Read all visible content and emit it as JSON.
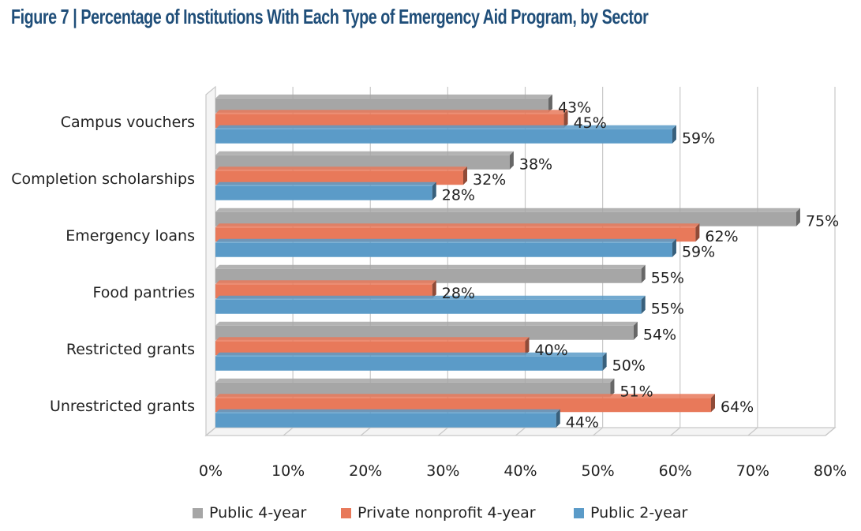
{
  "page": {
    "title": "Figure 7 | Percentage of Institutions With Each Type of Emergency Aid Program, by Sector"
  },
  "colors": {
    "title": "#1f4e79",
    "public4": "#a6a6a6",
    "private4": "#e8795a",
    "public2": "#5b9bc8",
    "grid": "#c8c8c8"
  },
  "chart_data": {
    "type": "bar",
    "orientation": "horizontal",
    "title": "Percentage of Institutions With Each Type of Emergency Aid Program, by Sector",
    "categories": [
      "Campus vouchers",
      "Completion scholarships",
      "Emergency loans",
      "Food pantries",
      "Restricted grants",
      "Unrestricted grants"
    ],
    "series": [
      {
        "name": "Public 4-year",
        "color": "#a6a6a6",
        "values": [
          43,
          38,
          75,
          55,
          54,
          51
        ]
      },
      {
        "name": "Private nonprofit 4-year",
        "color": "#e8795a",
        "values": [
          45,
          32,
          62,
          28,
          40,
          64
        ]
      },
      {
        "name": "Public 2-year",
        "color": "#5b9bc8",
        "values": [
          59,
          28,
          59,
          55,
          50,
          44
        ]
      }
    ],
    "value_suffix": "%",
    "xlim": [
      0,
      80
    ],
    "xticks": [
      "0%",
      "10%",
      "20%",
      "30%",
      "40%",
      "50%",
      "60%",
      "70%",
      "80%"
    ],
    "xlabel": "",
    "ylabel": "",
    "grid": true,
    "legend_position": "bottom"
  }
}
